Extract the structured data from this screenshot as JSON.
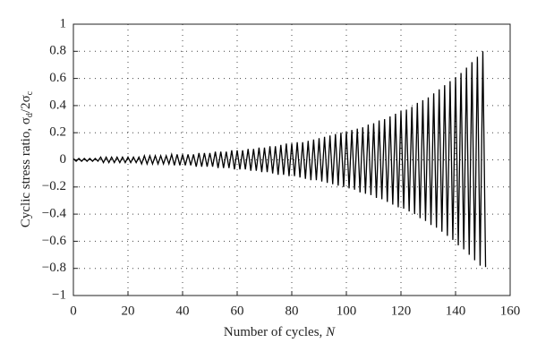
{
  "chart_data": {
    "type": "line",
    "ylabel_parts": [
      "Cyclic stress ratio, σ",
      "d",
      "/2σ",
      "c"
    ],
    "xlabel_parts": [
      "Number of cycles, ",
      "N"
    ],
    "color": "#000000",
    "grid": true,
    "xlim": [
      0,
      160
    ],
    "xticks": [
      0,
      20,
      40,
      60,
      80,
      100,
      120,
      140,
      160
    ],
    "ylim": [
      -1,
      1
    ],
    "yticks": [
      {
        "value": -1,
        "label": "−1"
      },
      {
        "value": -0.8,
        "label": "−0.8"
      },
      {
        "value": -0.6,
        "label": "−0.6"
      },
      {
        "value": -0.4,
        "label": "−0.4"
      },
      {
        "value": -0.2,
        "label": "−0.2"
      },
      0,
      0.2,
      0.4,
      0.6,
      0.8,
      1
    ],
    "x": [
      0,
      1,
      2,
      3,
      4,
      5,
      6,
      7,
      8,
      9,
      10,
      11,
      12,
      13,
      14,
      15,
      16,
      17,
      18,
      19,
      20,
      21,
      22,
      23,
      24,
      25,
      26,
      27,
      28,
      29,
      30,
      31,
      32,
      33,
      34,
      35,
      36,
      37,
      38,
      39,
      40,
      41,
      42,
      43,
      44,
      45,
      46,
      47,
      48,
      49,
      50,
      51,
      52,
      53,
      54,
      55,
      56,
      57,
      58,
      59,
      60,
      61,
      62,
      63,
      64,
      65,
      66,
      67,
      68,
      69,
      70,
      71,
      72,
      73,
      74,
      75,
      76,
      77,
      78,
      79,
      80,
      81,
      82,
      83,
      84,
      85,
      86,
      87,
      88,
      89,
      90,
      91,
      92,
      93,
      94,
      95,
      96,
      97,
      98,
      99,
      100,
      101,
      102,
      103,
      104,
      105,
      106,
      107,
      108,
      109,
      110,
      111,
      112,
      113,
      114,
      115,
      116,
      117,
      118,
      119,
      120,
      121,
      122,
      123,
      124,
      125,
      126,
      127,
      128,
      129,
      130,
      131,
      132,
      133,
      134,
      135,
      136,
      137,
      138,
      139,
      140,
      141,
      142,
      143,
      144,
      145,
      146,
      147,
      148,
      149,
      150,
      151
    ],
    "values": [
      0.01,
      -0.01,
      0.01,
      -0.01,
      0.01,
      -0.01,
      0.01,
      -0.01,
      0.01,
      -0.01,
      0.02,
      -0.02,
      0.02,
      -0.02,
      0.02,
      -0.02,
      0.02,
      -0.02,
      0.02,
      -0.02,
      0.02,
      -0.02,
      0.02,
      -0.02,
      0.02,
      -0.03,
      0.03,
      -0.03,
      0.03,
      -0.03,
      0.03,
      -0.03,
      0.03,
      -0.03,
      0.03,
      -0.03,
      0.04,
      -0.04,
      0.04,
      -0.04,
      0.04,
      -0.04,
      0.04,
      -0.04,
      0.04,
      -0.05,
      0.05,
      -0.05,
      0.05,
      -0.05,
      0.05,
      -0.05,
      0.06,
      -0.06,
      0.06,
      -0.06,
      0.06,
      -0.06,
      0.07,
      -0.07,
      0.07,
      -0.07,
      0.07,
      -0.07,
      0.08,
      -0.08,
      0.08,
      -0.08,
      0.09,
      -0.09,
      0.09,
      -0.09,
      0.1,
      -0.1,
      0.1,
      -0.11,
      0.11,
      -0.11,
      0.12,
      -0.12,
      0.12,
      -0.12,
      0.13,
      -0.13,
      0.13,
      -0.14,
      0.14,
      -0.15,
      0.15,
      -0.15,
      0.16,
      -0.16,
      0.17,
      -0.17,
      0.18,
      -0.18,
      0.19,
      -0.19,
      0.2,
      -0.2,
      0.21,
      -0.21,
      0.22,
      -0.22,
      0.23,
      -0.24,
      0.24,
      -0.25,
      0.26,
      -0.26,
      0.27,
      -0.28,
      0.29,
      -0.29,
      0.3,
      -0.31,
      0.32,
      -0.33,
      0.34,
      -0.35,
      0.36,
      -0.36,
      0.37,
      -0.38,
      0.39,
      -0.4,
      0.42,
      -0.43,
      0.44,
      -0.45,
      0.46,
      -0.48,
      0.49,
      -0.5,
      0.52,
      -0.53,
      0.55,
      -0.56,
      0.58,
      -0.59,
      0.61,
      -0.63,
      0.64,
      -0.66,
      0.68,
      -0.7,
      0.72,
      -0.74,
      0.76,
      -0.78,
      0.8,
      -0.79
    ]
  }
}
